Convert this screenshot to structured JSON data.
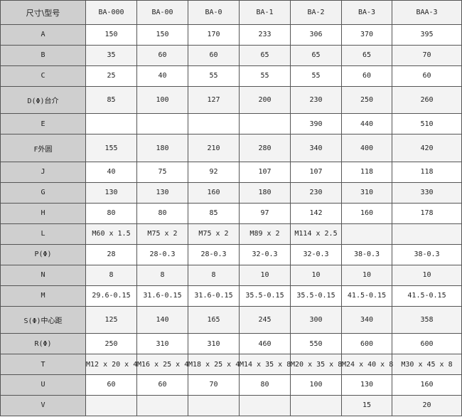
{
  "table": {
    "header": [
      "尺寸\\型号",
      "BA-000",
      "BA-00",
      "BA-0",
      "BA-1",
      "BA-2",
      "BA-3",
      "BAA-3"
    ],
    "rows": [
      [
        "A",
        "150",
        "150",
        "170",
        "233",
        "306",
        "370",
        "395"
      ],
      [
        "B",
        "35",
        "60",
        "60",
        "65",
        "65",
        "65",
        "70"
      ],
      [
        "C",
        "25",
        "40",
        "55",
        "55",
        "55",
        "60",
        "60"
      ],
      [
        "D(Φ)台介",
        "85",
        "100",
        "127",
        "200",
        "230",
        "250",
        "260"
      ],
      [
        "E",
        "",
        "",
        "",
        "",
        "390",
        "440",
        "510"
      ],
      [
        "F外圆",
        "155",
        "180",
        "210",
        "280",
        "340",
        "400",
        "420"
      ],
      [
        "J",
        "40",
        "75",
        "92",
        "107",
        "107",
        "118",
        "118"
      ],
      [
        "G",
        "130",
        "130",
        "160",
        "180",
        "230",
        "310",
        "330"
      ],
      [
        "H",
        "80",
        "80",
        "85",
        "97",
        "142",
        "160",
        "178"
      ],
      [
        "L",
        "M60 x 1.5",
        "M75 x 2",
        "M75 x 2",
        "M89 x 2",
        "M114 x 2.5",
        "",
        ""
      ],
      [
        "P(Φ)",
        "28",
        "28-0.3",
        "28-0.3",
        "32-0.3",
        "32-0.3",
        "38-0.3",
        "38-0.3"
      ],
      [
        "N",
        "8",
        "8",
        "8",
        "10",
        "10",
        "10",
        "10"
      ],
      [
        "M",
        "29.6-0.15",
        "31.6-0.15",
        "31.6-0.15",
        "35.5-0.15",
        "35.5-0.15",
        "41.5-0.15",
        "41.5-0.15"
      ],
      [
        "S(Φ)中心距",
        "125",
        "140",
        "165",
        "245",
        "300",
        "340",
        "358"
      ],
      [
        "R(Φ)",
        "250",
        "310",
        "310",
        "460",
        "550",
        "600",
        "600"
      ],
      [
        "T",
        "M12 x 20 x 4",
        "M16 x 25 x 4",
        "M18 x 25 x 4",
        "M14 x 35 x 8",
        "M20 x 35 x 8",
        "M24 x 40 x 8",
        "M30 x 45 x 8"
      ],
      [
        "U",
        "60",
        "60",
        "70",
        "80",
        "100",
        "130",
        "160"
      ],
      [
        "V",
        "",
        "",
        "",
        "",
        "",
        "15",
        "20"
      ]
    ]
  }
}
